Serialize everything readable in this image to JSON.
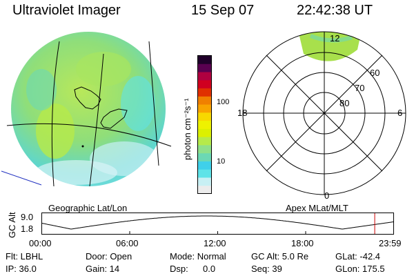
{
  "header": {
    "instrument": "Ultraviolet Imager",
    "date": "15 Sep 07",
    "time": "22:42:38 UT"
  },
  "image_panel": {
    "caption": "Geographic Lat/Lon"
  },
  "colorbar": {
    "label": "photon cm⁻²s⁻¹",
    "ticks": [
      {
        "label": "100",
        "value": 100
      },
      {
        "label": "10",
        "value": 10
      }
    ],
    "colors": [
      "#ececec",
      "#c8f0f4",
      "#5fe3e8",
      "#3fd0ea",
      "#6cd8b4",
      "#8fe08a",
      "#b6ea4a",
      "#dcf000",
      "#eef200",
      "#f7d800",
      "#f8a400",
      "#f08000",
      "#e03000",
      "#d00020",
      "#b00040",
      "#5a0050",
      "#20002a"
    ]
  },
  "polar_panel": {
    "caption": "Apex MLat/MLT",
    "mlt_labels": [
      {
        "label": "12",
        "angle": 0
      },
      {
        "label": "6",
        "angle": 90
      },
      {
        "label": "0",
        "angle": 180
      },
      {
        "label": "18",
        "angle": 270
      }
    ],
    "lat_labels": [
      {
        "label": "60",
        "mlat": 60
      },
      {
        "label": "70",
        "mlat": 70
      },
      {
        "label": "80",
        "mlat": 80
      }
    ]
  },
  "altitude_plot": {
    "ylabel": "GC Alt",
    "y_ticks": [
      {
        "label": "9.0",
        "value": 9.0
      },
      {
        "label": "1.8",
        "value": 1.8
      }
    ],
    "x_ticks": [
      {
        "label": "00:00",
        "hour": 0
      },
      {
        "label": "06:00",
        "hour": 6
      },
      {
        "label": "12:00",
        "hour": 12
      },
      {
        "label": "18:00",
        "hour": 18
      },
      {
        "label": "23:59",
        "hour": 24
      }
    ],
    "current_hour": 22.71,
    "marker_color": "#cc0000"
  },
  "info": {
    "filter": "Flt: LBHL",
    "ip": "IP: 36.0",
    "door": "Door: Open",
    "gain": "Gain: 14",
    "mode": "Mode: Normal",
    "dsp_label": "Dsp:",
    "dsp_value": "0.0",
    "gc_alt": "GC Alt: 5.0 Re",
    "seq": "Seq: 39",
    "glat": "GLat: -42.4",
    "glon": "GLon: 175.5"
  }
}
